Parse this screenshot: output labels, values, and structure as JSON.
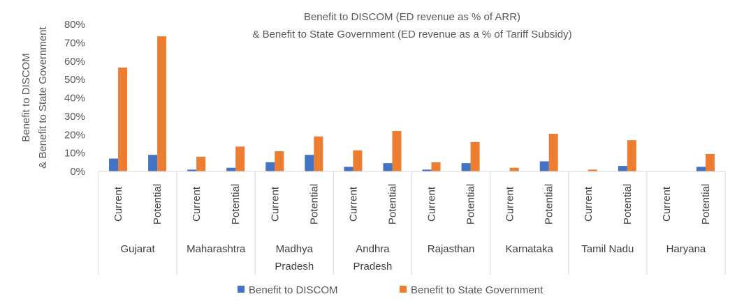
{
  "chart_data": {
    "type": "bar",
    "title_lines": [
      "Benefit to DISCOM (ED revenue as % of ARR)",
      "& Benefit to State Government (ED revenue as a % of Tariff Subsidy)"
    ],
    "ylabel_lines": [
      "Benefit to DISCOM",
      "& Benefit to State Government"
    ],
    "xlabel": "",
    "ylim": [
      0,
      80
    ],
    "ytick_values": [
      0,
      10,
      20,
      30,
      40,
      50,
      60,
      70,
      80
    ],
    "ytick_labels": [
      "0%",
      "10%",
      "20%",
      "30%",
      "40%",
      "50%",
      "60%",
      "70%",
      "80%"
    ],
    "grid": false,
    "legend_position": "bottom",
    "groups": [
      {
        "label_lines": [
          "Gujarat"
        ],
        "subcategories": [
          "Current",
          "Potential"
        ]
      },
      {
        "label_lines": [
          "Maharashtra"
        ],
        "subcategories": [
          "Current",
          "Potential"
        ]
      },
      {
        "label_lines": [
          "Madhya",
          "Pradesh"
        ],
        "subcategories": [
          "Current",
          "Potential"
        ]
      },
      {
        "label_lines": [
          "Andhra",
          "Pradesh"
        ],
        "subcategories": [
          "Current",
          "Potential"
        ]
      },
      {
        "label_lines": [
          "Rajasthan"
        ],
        "subcategories": [
          "Current",
          "Potential"
        ]
      },
      {
        "label_lines": [
          "Karnataka"
        ],
        "subcategories": [
          "Current",
          "Potential"
        ]
      },
      {
        "label_lines": [
          "Tamil Nadu"
        ],
        "subcategories": [
          "Current",
          "Potential"
        ]
      },
      {
        "label_lines": [
          "Haryana"
        ],
        "subcategories": [
          "Current",
          "Potential"
        ]
      }
    ],
    "series": [
      {
        "name": "Benefit to DISCOM",
        "color": "#4472C4",
        "values": [
          7,
          9,
          1,
          2,
          5,
          9,
          2.5,
          4.5,
          1,
          4.5,
          0,
          5.5,
          0,
          3,
          0,
          2.5
        ]
      },
      {
        "name": "Benefit to State Government",
        "color": "#ED7D31",
        "values": [
          56.5,
          73.5,
          8,
          13.5,
          11,
          19,
          11.5,
          22,
          5,
          16,
          2,
          20.5,
          1,
          17,
          0,
          9.5
        ]
      }
    ]
  }
}
